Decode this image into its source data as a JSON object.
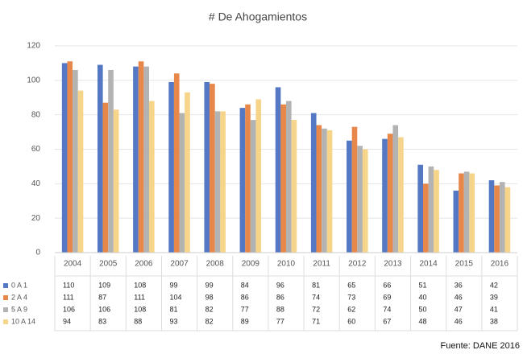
{
  "chart_data": {
    "type": "bar",
    "title": "# De Ahogamientos",
    "source": "Fuente: DANE 2016",
    "categories": [
      "2004",
      "2005",
      "2006",
      "2007",
      "2008",
      "2009",
      "2010",
      "2011",
      "2012",
      "2013",
      "2014",
      "2015",
      "2016"
    ],
    "series": [
      {
        "name": "0 A 1",
        "color": "#5478c4",
        "values": [
          110,
          109,
          108,
          99,
          99,
          84,
          96,
          81,
          65,
          66,
          51,
          36,
          42
        ]
      },
      {
        "name": "2 A 4",
        "color": "#e8874a",
        "values": [
          111,
          87,
          111,
          104,
          98,
          86,
          86,
          74,
          73,
          69,
          40,
          46,
          39
        ]
      },
      {
        "name": "5 A 9",
        "color": "#b3b3b3",
        "values": [
          106,
          106,
          108,
          81,
          82,
          77,
          88,
          72,
          62,
          74,
          50,
          47,
          41
        ]
      },
      {
        "name": "10 A 14",
        "color": "#f6d48a",
        "values": [
          94,
          83,
          88,
          93,
          82,
          89,
          77,
          71,
          60,
          67,
          48,
          46,
          38
        ]
      }
    ],
    "ylim": [
      0,
      120
    ],
    "yticks": [
      0,
      20,
      40,
      60,
      80,
      100,
      120
    ],
    "grid": true
  }
}
